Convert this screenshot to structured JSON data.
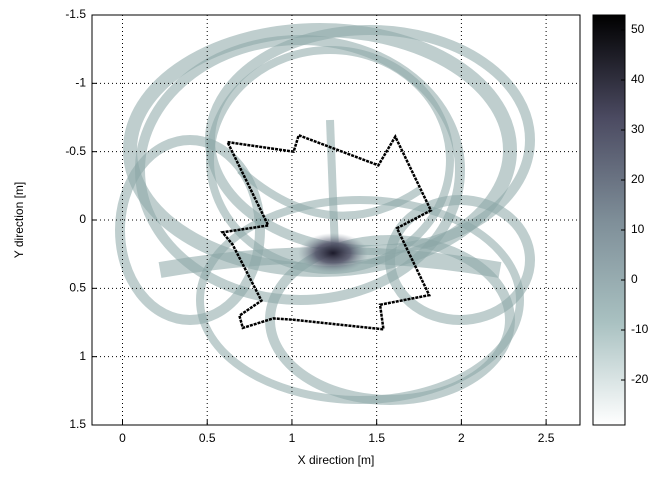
{
  "chart_data": {
    "type": "image-contour",
    "xlabel": "X direction [m]",
    "ylabel": "Y direction [m]",
    "xlim": [
      -0.18,
      2.7
    ],
    "ylim": [
      -1.5,
      1.5
    ],
    "y_reversed": true,
    "xticks": [
      0,
      0.5,
      1,
      1.5,
      2,
      2.5
    ],
    "yticks": [
      -1.5,
      -1,
      -0.5,
      0,
      0.5,
      1,
      1.5
    ],
    "grid": true,
    "clim": [
      -29,
      53
    ],
    "cticks": [
      -20,
      -10,
      0,
      10,
      20,
      30,
      40,
      50
    ],
    "series": [
      {
        "color": "#000000",
        "x": [
          0.62,
          1.01,
          1.04,
          1.51,
          1.61,
          1.82,
          1.62,
          1.81,
          1.52,
          1.54,
          1.01,
          0.89,
          0.71,
          0.69,
          0.82,
          0.65,
          0.59,
          0.86
        ],
        "values": [
          -0.57,
          -0.5,
          -0.62,
          -0.4,
          -0.61,
          -0.07,
          0.06,
          0.55,
          0.62,
          0.8,
          0.73,
          0.72,
          0.79,
          0.7,
          0.59,
          0.18,
          0.09,
          0.04
        ]
      }
    ]
  }
}
